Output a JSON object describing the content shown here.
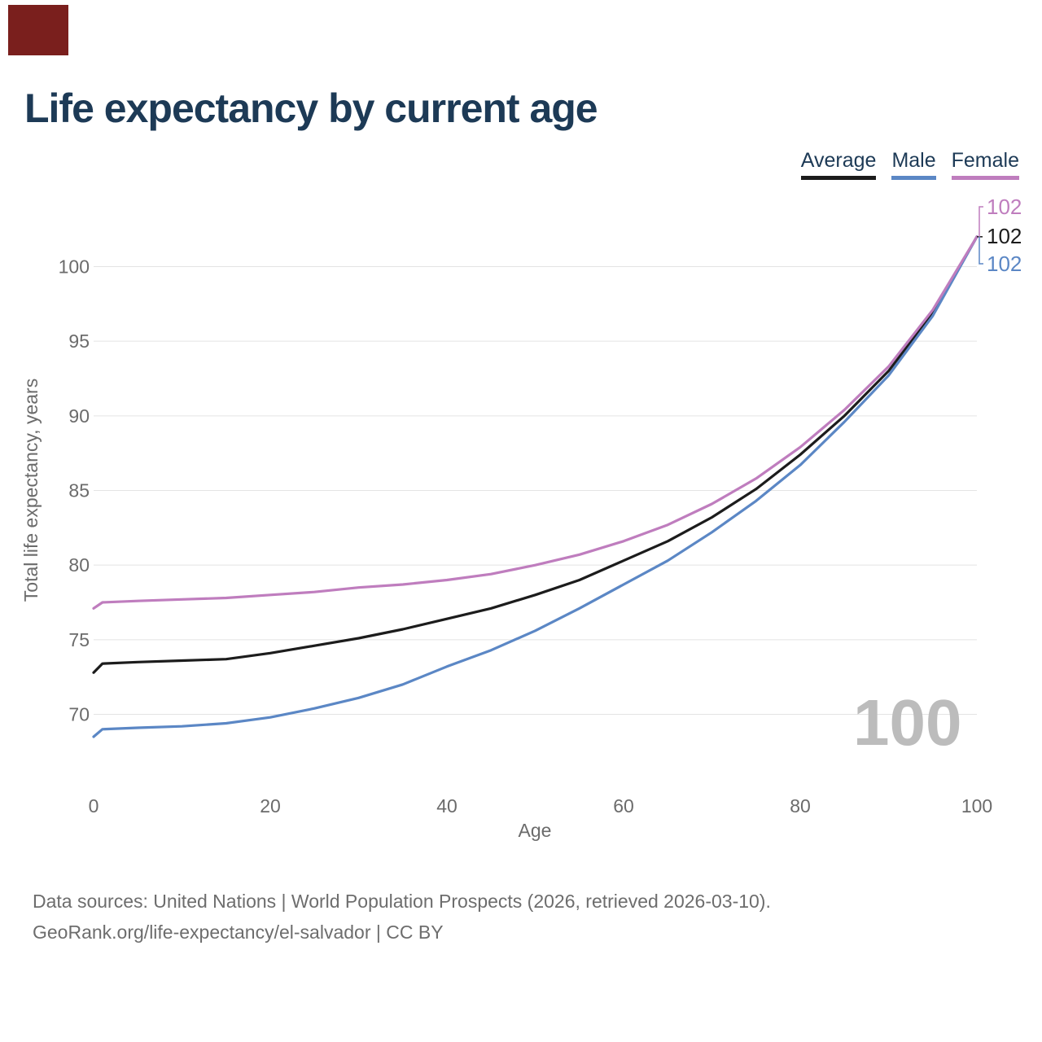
{
  "corner_block": {
    "color": "#7a1f1d"
  },
  "title": "Life expectancy by current age",
  "legend": {
    "items": [
      {
        "label": "Average",
        "color": "#1c1c1c"
      },
      {
        "label": "Male",
        "color": "#5b87c5"
      },
      {
        "label": "Female",
        "color": "#bf7dbe"
      }
    ]
  },
  "watermark": "100",
  "footer": {
    "line1": "Data sources: United Nations | World Population Prospects (2026, retrieved 2026-03-10).",
    "line2": "GeoRank.org/life-expectancy/el-salvador | CC BY"
  },
  "chart_data": {
    "type": "line",
    "title": "Life expectancy by current age",
    "xlabel": "Age",
    "ylabel": "Total life expectancy, years",
    "xlim": [
      0,
      100
    ],
    "ylim": [
      67,
      103
    ],
    "x_ticks": [
      0,
      20,
      40,
      60,
      80,
      100
    ],
    "y_gridlines": [
      70,
      75,
      80,
      85,
      90,
      95,
      100
    ],
    "grid": "horizontal",
    "legend_position": "top-right",
    "x": [
      0,
      1,
      5,
      10,
      15,
      20,
      25,
      30,
      35,
      40,
      45,
      50,
      55,
      60,
      65,
      70,
      75,
      80,
      85,
      90,
      95,
      100
    ],
    "series": [
      {
        "name": "Average",
        "color": "#1c1c1c",
        "end_label": "102",
        "values": [
          72.8,
          73.4,
          73.5,
          73.6,
          73.7,
          74.1,
          74.6,
          75.1,
          75.7,
          76.4,
          77.1,
          78.0,
          79.0,
          80.3,
          81.6,
          83.2,
          85.1,
          87.4,
          90.0,
          93.0,
          96.9,
          102.0
        ]
      },
      {
        "name": "Male",
        "color": "#5b87c5",
        "end_label": "102",
        "values": [
          68.5,
          69.0,
          69.1,
          69.2,
          69.4,
          69.8,
          70.4,
          71.1,
          72.0,
          73.2,
          74.3,
          75.6,
          77.1,
          78.7,
          80.3,
          82.2,
          84.3,
          86.7,
          89.6,
          92.7,
          96.7,
          102.0
        ]
      },
      {
        "name": "Female",
        "color": "#bf7dbe",
        "end_label": "102",
        "values": [
          77.1,
          77.5,
          77.6,
          77.7,
          77.8,
          78.0,
          78.2,
          78.5,
          78.7,
          79.0,
          79.4,
          80.0,
          80.7,
          81.6,
          82.7,
          84.1,
          85.8,
          87.9,
          90.4,
          93.3,
          97.1,
          102.0
        ]
      }
    ],
    "axis_text_color": "#6b6b6b",
    "gridline_color": "#e4e4e4"
  }
}
